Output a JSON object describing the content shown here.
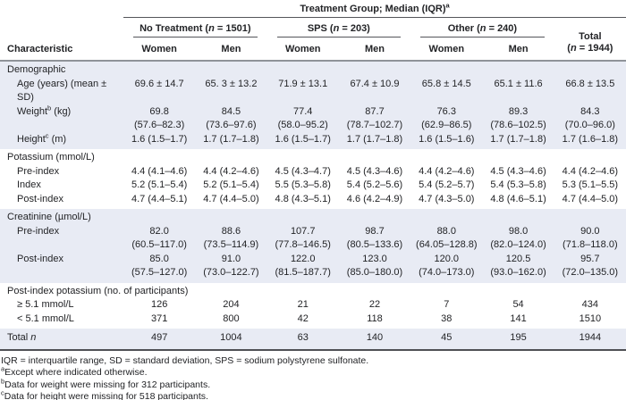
{
  "table": {
    "title": {
      "text": "Treatment Group; Median (IQR)",
      "sup": "a"
    },
    "characteristic_label": "Characteristic",
    "groups": [
      {
        "pre": "No Treatment (",
        "n": "n",
        "post": " = 1501)"
      },
      {
        "pre": "SPS (",
        "n": "n",
        "post": " = 203)"
      },
      {
        "pre": "Other (",
        "n": "n",
        "post": " = 240)"
      }
    ],
    "subcolumns": [
      "Women",
      "Men",
      "Women",
      "Men",
      "Women",
      "Men"
    ],
    "total_col": {
      "line1": "Total",
      "pre": "(",
      "n": "n",
      "post": " = 1944)"
    },
    "sections": [
      {
        "header": "Demographic",
        "rows": [
          {
            "label": "Age (years) (mean ± SD)",
            "values": [
              "69.6 ± 14.7",
              "65. 3 ± 13.2",
              "71.9 ± 13.1",
              "67.4 ± 10.9",
              "65.8 ± 14.5",
              "65.1 ± 11.6",
              "66.8 ± 13.5"
            ]
          },
          {
            "label": "Weight",
            "label_sup": "b",
            "label_post": " (kg)",
            "values": [
              "69.8\n(57.6–82.3)",
              "84.5\n(73.6–97.6)",
              "77.4\n(58.0–95.2)",
              "87.7\n(78.7–102.7)",
              "76.3\n(62.9–86.5)",
              "89.3\n(78.6–102.5)",
              "84.3\n(70.0–96.0)"
            ]
          },
          {
            "label": "Height",
            "label_sup": "c",
            "label_post": " (m)",
            "values": [
              "1.6 (1.5–1.7)",
              "1.7 (1.7–1.8)",
              "1.6 (1.5–1.7)",
              "1.7 (1.7–1.8)",
              "1.6 (1.5–1.6)",
              "1.7 (1.7–1.8)",
              "1.7 (1.6–1.8)"
            ]
          }
        ]
      },
      {
        "header": "Potassium (mmol/L)",
        "rows": [
          {
            "label": "Pre-index",
            "values": [
              "4.4 (4.1–4.6)",
              "4.4 (4.2–4.6)",
              "4.5 (4.3–4.7)",
              "4.5 (4.3–4.6)",
              "4.4 (4.2–4.6)",
              "4.5 (4.3–4.6)",
              "4.4 (4.2–4.6)"
            ]
          },
          {
            "label": "Index",
            "values": [
              "5.2 (5.1–5.4)",
              "5.2 (5.1–5.4)",
              "5.5 (5.3–5.8)",
              "5.4 (5.2–5.6)",
              "5.4 (5.2–5.7)",
              "5.4 (5.3–5.8)",
              "5.3 (5.1–5.5)"
            ]
          },
          {
            "label": "Post-index",
            "values": [
              "4.7 (4.4–5.1)",
              "4.7 (4.4–5.0)",
              "4.8 (4.3–5.1)",
              "4.6 (4.2–4.9)",
              "4.7 (4.3–5.0)",
              "4.8 (4.6–5.1)",
              "4.7 (4.4–5.0)"
            ]
          }
        ]
      },
      {
        "header": "Creatinine (µmol/L)",
        "rows": [
          {
            "label": "Pre-index",
            "values": [
              "82.0\n(60.5–117.0)",
              "88.6\n(73.5–114.9)",
              "107.7\n(77.8–146.5)",
              "98.7\n(80.5–133.6)",
              "88.0\n(64.05–128.8)",
              "98.0\n(82.0–124.0)",
              "90.0\n(71.8–118.0)"
            ]
          },
          {
            "label": "Post-index",
            "values": [
              "85.0\n(57.5–127.0)",
              "91.0\n(73.0–122.7)",
              "122.0\n(81.5–187.7)",
              "123.0\n(85.0–180.0)",
              "120.0\n(74.0–173.0)",
              "120.5\n(93.0–162.0)",
              "95.7\n(72.0–135.0)"
            ]
          }
        ]
      },
      {
        "header": "Post-index potassium (no. of participants)",
        "rows": [
          {
            "label": "≥ 5.1 mmol/L",
            "values": [
              "126",
              "204",
              "21",
              "22",
              "7",
              "54",
              "434"
            ]
          },
          {
            "label": "< 5.1 mmol/L",
            "values": [
              "371",
              "800",
              "42",
              "118",
              "38",
              "141",
              "1510"
            ]
          }
        ]
      }
    ],
    "total_row": {
      "pre": "Total ",
      "n": "n",
      "values": [
        "497",
        "1004",
        "63",
        "140",
        "45",
        "195",
        "1944"
      ]
    }
  },
  "footnotes": {
    "abbr": "IQR = interquartile range, SD = standard deviation, SPS = sodium polystyrene sulfonate.",
    "notes": [
      {
        "sup": "a",
        "text": "Except where indicated otherwise."
      },
      {
        "sup": "b",
        "text": "Data for weight were missing for 312 participants."
      },
      {
        "sup": "c",
        "text": "Data for height were missing for 518 participants."
      }
    ]
  }
}
